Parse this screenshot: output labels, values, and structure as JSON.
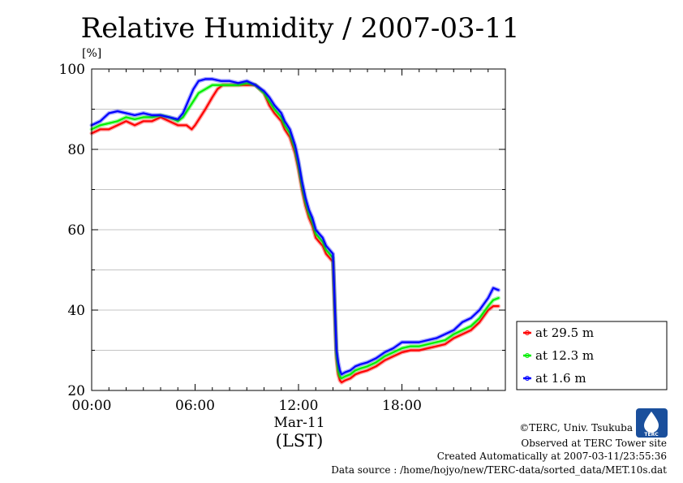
{
  "chart_data": {
    "type": "line",
    "title": "Relative Humidity / 2007-03-11",
    "ylabel": "[%]",
    "xlabel": "(LST)",
    "date_label": "Mar-11",
    "xlim": [
      0,
      24
    ],
    "ylim": [
      20,
      100
    ],
    "y_ticks": [
      20,
      40,
      60,
      80,
      100
    ],
    "x_ticks": [
      {
        "hour": 0,
        "label": "00:00"
      },
      {
        "hour": 6,
        "label": "06:00"
      },
      {
        "hour": 12,
        "label": "12:00"
      },
      {
        "hour": 18,
        "label": "18:00"
      }
    ],
    "grid": true,
    "legend_position": "right",
    "series": [
      {
        "name": "at 29.5 m",
        "color": "#ff0000",
        "x": [
          0.0,
          0.5,
          1.0,
          1.5,
          2.0,
          2.5,
          3.0,
          3.5,
          4.0,
          4.5,
          5.0,
          5.5,
          5.8,
          6.0,
          6.3,
          6.6,
          7.0,
          7.3,
          7.6,
          8.0,
          8.5,
          9.0,
          9.5,
          10.0,
          10.3,
          10.6,
          11.0,
          11.2,
          11.5,
          11.8,
          12.0,
          12.2,
          12.4,
          12.6,
          12.8,
          13.0,
          13.2,
          13.4,
          13.6,
          13.8,
          14.0,
          14.1,
          14.2,
          14.3,
          14.4,
          14.5,
          14.7,
          15.0,
          15.3,
          15.6,
          16.0,
          16.5,
          17.0,
          17.5,
          18.0,
          18.5,
          19.0,
          19.5,
          20.0,
          20.5,
          21.0,
          21.5,
          22.0,
          22.5,
          23.0,
          23.3,
          23.6
        ],
        "y": [
          84,
          85,
          85,
          86,
          87,
          86,
          87,
          87,
          88,
          87,
          86,
          86,
          85,
          86,
          88,
          90,
          93,
          95,
          96,
          96,
          96,
          96,
          96,
          94,
          91,
          89,
          87,
          85,
          83,
          79,
          75,
          70,
          66,
          63,
          61,
          58,
          57,
          56,
          54,
          53,
          52,
          40,
          28,
          24,
          22.5,
          22,
          22.5,
          23,
          24,
          24.5,
          25,
          26,
          27.5,
          28.5,
          29.5,
          30,
          30,
          30.5,
          31,
          31.5,
          33,
          34,
          35,
          37,
          40,
          41,
          41
        ]
      },
      {
        "name": "at 12.3 m",
        "color": "#00ee00",
        "x": [
          0.0,
          0.5,
          1.0,
          1.5,
          2.0,
          2.5,
          3.0,
          3.5,
          4.0,
          4.5,
          5.0,
          5.3,
          5.6,
          5.9,
          6.2,
          6.6,
          7.0,
          7.5,
          8.0,
          8.5,
          9.0,
          9.5,
          10.0,
          10.3,
          10.6,
          11.0,
          11.2,
          11.5,
          11.8,
          12.0,
          12.2,
          12.4,
          12.6,
          12.8,
          13.0,
          13.2,
          13.4,
          13.6,
          13.8,
          14.0,
          14.1,
          14.2,
          14.3,
          14.4,
          14.5,
          14.7,
          15.0,
          15.3,
          15.6,
          16.0,
          16.5,
          17.0,
          17.5,
          18.0,
          18.5,
          19.0,
          19.5,
          20.0,
          20.5,
          21.0,
          21.5,
          22.0,
          22.5,
          23.0,
          23.3,
          23.6
        ],
        "y": [
          85,
          86,
          86.5,
          87,
          88,
          87.5,
          88,
          88,
          88.5,
          88,
          87,
          88,
          90,
          92,
          94,
          95,
          96,
          96,
          96,
          96,
          96.5,
          96,
          94,
          92,
          90,
          88,
          86,
          84,
          80,
          76,
          71,
          67,
          64,
          62,
          59,
          58,
          57,
          55,
          54,
          53,
          41,
          29,
          25,
          23.5,
          23,
          23.5,
          24,
          25,
          25.5,
          26,
          27,
          28.5,
          29.5,
          30.5,
          31,
          31,
          31.5,
          32,
          32.5,
          34,
          35,
          36,
          38,
          41,
          42.5,
          43
        ]
      },
      {
        "name": "at 1.6 m",
        "color": "#0000ff",
        "x": [
          0.0,
          0.5,
          1.0,
          1.5,
          2.0,
          2.5,
          3.0,
          3.5,
          4.0,
          4.5,
          5.0,
          5.3,
          5.6,
          5.9,
          6.2,
          6.6,
          7.0,
          7.5,
          8.0,
          8.5,
          9.0,
          9.5,
          10.0,
          10.3,
          10.6,
          11.0,
          11.2,
          11.5,
          11.8,
          12.0,
          12.2,
          12.4,
          12.6,
          12.8,
          13.0,
          13.2,
          13.4,
          13.6,
          13.8,
          14.0,
          14.1,
          14.2,
          14.3,
          14.4,
          14.5,
          14.7,
          15.0,
          15.3,
          15.6,
          16.0,
          16.5,
          17.0,
          17.5,
          18.0,
          18.5,
          19.0,
          19.5,
          20.0,
          20.5,
          21.0,
          21.5,
          22.0,
          22.5,
          23.0,
          23.3,
          23.6
        ],
        "y": [
          86,
          87,
          89,
          89.5,
          89,
          88.5,
          89,
          88.5,
          88.5,
          88,
          87.5,
          89,
          92,
          95,
          97,
          97.5,
          97.5,
          97,
          97,
          96.5,
          97,
          96,
          94.5,
          93,
          91,
          89,
          87,
          85,
          81,
          77,
          72,
          68,
          65,
          63,
          60,
          59,
          58,
          56,
          55,
          54,
          42,
          30,
          27,
          25,
          24,
          24.5,
          25,
          26,
          26.5,
          27,
          28,
          29.5,
          30.5,
          32,
          32,
          32,
          32.5,
          33,
          34,
          35,
          37,
          38,
          40,
          43,
          45.5,
          45
        ]
      }
    ]
  },
  "credits": {
    "copyright": "©TERC, Univ. Tsukuba",
    "observed": "Observed at TERC Tower site",
    "created": "Created Automatically at 2007-03-11/23:55:36",
    "source": "Data source : /home/hojyo/new/TERC-data/sorted_data/MET.10s.dat"
  },
  "logo": {
    "text": "TERC",
    "color": "#1a4f9c"
  }
}
